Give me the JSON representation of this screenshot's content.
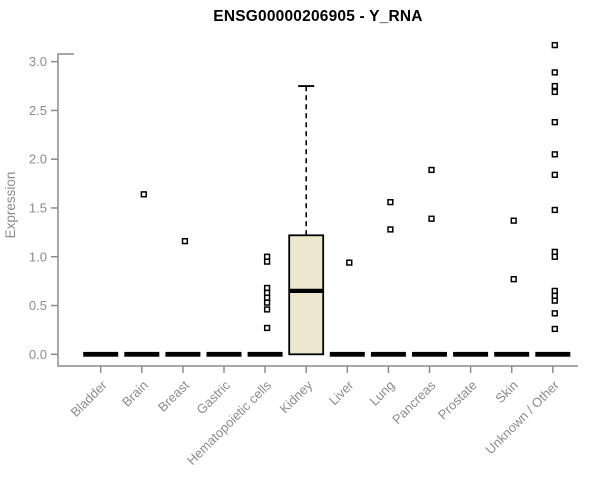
{
  "chart_data": {
    "type": "boxplot",
    "title": "ENSG00000206905 - Y_RNA",
    "ylabel": "Expression",
    "xlabel": "",
    "ylim": [
      0,
      3.2
    ],
    "ytick_labels": [
      "0.0",
      "0.5",
      "1.0",
      "1.5",
      "2.0",
      "2.5",
      "3.0"
    ],
    "grid": false,
    "legend": null,
    "categories": [
      "Bladder",
      "Brain",
      "Breast",
      "Gastric",
      "Hematopoietic cells",
      "Kidney",
      "Liver",
      "Lung",
      "Pancreas",
      "Prostate",
      "Skin",
      "Unknown / Other"
    ],
    "boxes": [
      {
        "category": "Bladder",
        "q1": 0,
        "median": 0,
        "q3": 0,
        "whisker_low": 0,
        "whisker_high": 0,
        "outliers": []
      },
      {
        "category": "Brain",
        "q1": 0,
        "median": 0,
        "q3": 0,
        "whisker_low": 0,
        "whisker_high": 0,
        "outliers": [
          1.64
        ]
      },
      {
        "category": "Breast",
        "q1": 0,
        "median": 0,
        "q3": 0,
        "whisker_low": 0,
        "whisker_high": 0,
        "outliers": [
          1.16
        ]
      },
      {
        "category": "Gastric",
        "q1": 0,
        "median": 0,
        "q3": 0,
        "whisker_low": 0,
        "whisker_high": 0,
        "outliers": []
      },
      {
        "category": "Hematopoietic cells",
        "q1": 0,
        "median": 0,
        "q3": 0,
        "whisker_low": 0,
        "whisker_high": 0,
        "outliers": [
          1.0,
          0.95,
          0.68,
          0.63,
          0.58,
          0.53,
          0.46,
          0.27
        ]
      },
      {
        "category": "Kidney",
        "q1": 0,
        "median": 0.65,
        "q3": 1.22,
        "whisker_low": 0,
        "whisker_high": 2.75,
        "outliers": []
      },
      {
        "category": "Liver",
        "q1": 0,
        "median": 0,
        "q3": 0,
        "whisker_low": 0,
        "whisker_high": 0,
        "outliers": [
          0.94
        ]
      },
      {
        "category": "Lung",
        "q1": 0,
        "median": 0,
        "q3": 0,
        "whisker_low": 0,
        "whisker_high": 0,
        "outliers": [
          1.56,
          1.28
        ]
      },
      {
        "category": "Pancreas",
        "q1": 0,
        "median": 0,
        "q3": 0,
        "whisker_low": 0,
        "whisker_high": 0,
        "outliers": [
          1.89,
          1.39
        ]
      },
      {
        "category": "Prostate",
        "q1": 0,
        "median": 0,
        "q3": 0,
        "whisker_low": 0,
        "whisker_high": 0,
        "outliers": []
      },
      {
        "category": "Skin",
        "q1": 0,
        "median": 0,
        "q3": 0,
        "whisker_low": 0,
        "whisker_high": 0,
        "outliers": [
          1.37,
          0.77
        ]
      },
      {
        "category": "Unknown / Other",
        "q1": 0,
        "median": 0,
        "q3": 0,
        "whisker_low": 0,
        "whisker_high": 0,
        "outliers": [
          3.17,
          2.89,
          2.75,
          2.69,
          2.38,
          2.05,
          1.84,
          1.48,
          1.05,
          1.0,
          0.65,
          0.6,
          0.55,
          0.42,
          0.26
        ]
      }
    ],
    "colors": {
      "box_fill": "#ece7cd",
      "box_border": "#000000",
      "median": "#000000",
      "outlier_fill": "#ffffff",
      "outlier_stroke": "#000000",
      "axis": "#8c8c8c",
      "label": "#8c8c8c",
      "title": "#000000"
    }
  }
}
